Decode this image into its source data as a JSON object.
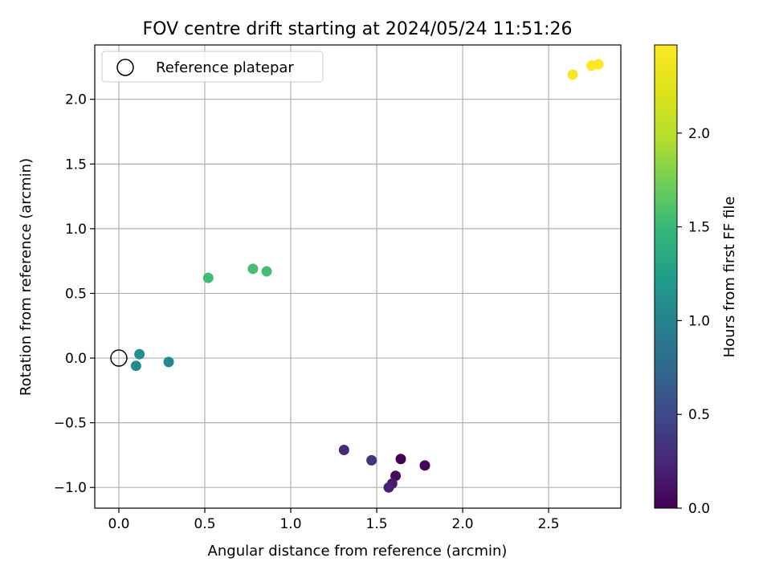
{
  "chart_data": {
    "type": "scatter",
    "title": "FOV centre drift starting at 2024/05/24 11:51:26",
    "xlabel": "Angular distance from reference (arcmin)",
    "ylabel": "Rotation from reference (arcmin)",
    "xlim": [
      -0.14,
      2.92
    ],
    "ylim": [
      -1.16,
      2.42
    ],
    "xticks": [
      0.0,
      0.5,
      1.0,
      1.5,
      2.0,
      2.5
    ],
    "xtick_labels": [
      "0.0",
      "0.5",
      "1.0",
      "1.5",
      "2.0",
      "2.5"
    ],
    "yticks": [
      -1.0,
      -0.5,
      0.0,
      0.5,
      1.0,
      1.5,
      2.0
    ],
    "ytick_labels": [
      "−1.0",
      "−0.5",
      "0.0",
      "0.5",
      "1.0",
      "1.5",
      "2.0"
    ],
    "grid": true,
    "legend": {
      "placement": "top-left",
      "entries": [
        "Reference platepar"
      ]
    },
    "reference_point": {
      "x": 0.0,
      "y": 0.0,
      "marker": "open-circle",
      "color": "#000000"
    },
    "colorbar": {
      "label": "Hours from first FF file",
      "min": 0.0,
      "max": 2.47,
      "ticks": [
        0.0,
        0.5,
        1.0,
        1.5,
        2.0
      ],
      "tick_labels": [
        "0.0",
        "0.5",
        "1.0",
        "1.5",
        "2.0"
      ],
      "colormap": "viridis"
    },
    "points": [
      {
        "x": 1.64,
        "y": -0.78,
        "hours": 0.0
      },
      {
        "x": 1.78,
        "y": -0.83,
        "hours": 0.02
      },
      {
        "x": 1.61,
        "y": -0.91,
        "hours": 0.07
      },
      {
        "x": 1.59,
        "y": -0.97,
        "hours": 0.17
      },
      {
        "x": 1.57,
        "y": -1.0,
        "hours": 0.2
      },
      {
        "x": 1.31,
        "y": -0.71,
        "hours": 0.27
      },
      {
        "x": 1.47,
        "y": -0.79,
        "hours": 0.32
      },
      {
        "x": 0.29,
        "y": -0.03,
        "hours": 1.05
      },
      {
        "x": 0.1,
        "y": -0.06,
        "hours": 1.07
      },
      {
        "x": 0.12,
        "y": 0.03,
        "hours": 1.1
      },
      {
        "x": 0.52,
        "y": 0.62,
        "hours": 1.52
      },
      {
        "x": 0.78,
        "y": 0.69,
        "hours": 1.56
      },
      {
        "x": 0.86,
        "y": 0.67,
        "hours": 1.56
      },
      {
        "x": 2.64,
        "y": 2.19,
        "hours": 2.43
      },
      {
        "x": 2.75,
        "y": 2.26,
        "hours": 2.46
      },
      {
        "x": 2.79,
        "y": 2.27,
        "hours": 2.47
      }
    ]
  }
}
